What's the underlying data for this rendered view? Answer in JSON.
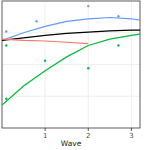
{
  "chart_data": {
    "type": "line",
    "x_label": "Wave",
    "xlim": [
      0,
      3.2
    ],
    "xticks": [
      1,
      2,
      3
    ],
    "ylim": [
      0,
      10
    ],
    "yticks": [
      2.5,
      5,
      7.5
    ],
    "grid": true,
    "tick_labels": "x",
    "series": [
      {
        "type": "line",
        "color": "#619cff",
        "x": [
          0,
          0.5,
          1,
          1.5,
          2,
          2.5,
          3,
          3.2
        ],
        "values": [
          6.9,
          7.5,
          8.0,
          8.4,
          8.6,
          8.7,
          8.6,
          8.5
        ]
      },
      {
        "type": "line",
        "color": "#000000",
        "x": [
          0,
          0.5,
          1,
          1.5,
          2,
          2.5,
          3,
          3.2
        ],
        "values": [
          6.9,
          7.1,
          7.3,
          7.45,
          7.55,
          7.65,
          7.7,
          7.7
        ]
      },
      {
        "type": "line",
        "color": "#f8766d",
        "x": [
          0,
          0.5,
          1,
          1.5,
          2,
          2.5,
          3,
          3.2
        ],
        "values": [
          7.0,
          6.9,
          6.85,
          6.75,
          6.65,
          null,
          null,
          null
        ]
      },
      {
        "type": "line",
        "color": "#00ba38",
        "x": [
          0,
          0.5,
          1,
          1.5,
          2,
          2.5,
          3,
          3.2
        ],
        "values": [
          1.8,
          3.3,
          4.5,
          5.6,
          6.5,
          7.0,
          7.3,
          7.4
        ]
      },
      {
        "type": "scatter",
        "marker": "circle",
        "color": "#619cff",
        "x": [
          0.8,
          2.0,
          2.7,
          0.1
        ],
        "values": [
          8.4,
          9.6,
          8.8,
          7.6
        ]
      },
      {
        "type": "scatter",
        "marker": "circle",
        "color": "#00ba38",
        "x": [
          0.1,
          1.0,
          2.0,
          2.7,
          0.1
        ],
        "values": [
          6.5,
          5.3,
          4.7,
          6.5,
          2.3
        ]
      }
    ]
  }
}
